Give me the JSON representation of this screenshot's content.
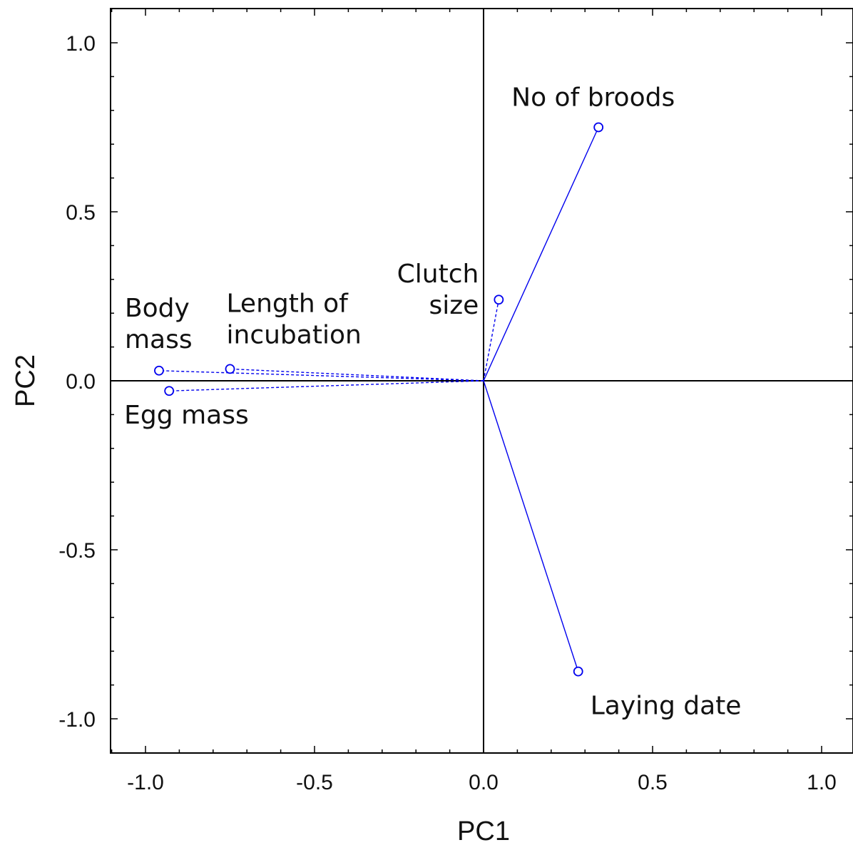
{
  "chart_data": {
    "type": "scatter",
    "subtype": "pca-loadings-biplot",
    "title": "",
    "xlabel": "PC1",
    "ylabel": "PC2",
    "xlim": [
      -1.1,
      1.1
    ],
    "ylim": [
      -1.1,
      1.1
    ],
    "xticks": [
      -1.0,
      -0.5,
      0.0,
      0.5,
      1.0
    ],
    "yticks": [
      -1.0,
      -0.5,
      0.0,
      0.5,
      1.0
    ],
    "xtick_labels": [
      "-1.0",
      "-0.5",
      "0.0",
      "0.5",
      "1.0"
    ],
    "ytick_labels": [
      "-1.0",
      "-0.5",
      "0.0",
      "0.5",
      "1.0"
    ],
    "grid": false,
    "color": "#0000ee",
    "variables": [
      {
        "name": "No of broods",
        "label_lines": [
          "No of broods"
        ],
        "x": 0.34,
        "y": 0.75,
        "line": "solid"
      },
      {
        "name": "Laying date",
        "label_lines": [
          "Laying date"
        ],
        "x": 0.28,
        "y": -0.86,
        "line": "solid"
      },
      {
        "name": "Clutch size",
        "label_lines": [
          "Clutch",
          "size"
        ],
        "x": 0.045,
        "y": 0.24,
        "line": "dashed"
      },
      {
        "name": "Body mass",
        "label_lines": [
          "Body",
          "mass"
        ],
        "x": -0.96,
        "y": 0.03,
        "line": "dashed"
      },
      {
        "name": "Length of incubation",
        "label_lines": [
          "Length of",
          "incubation"
        ],
        "x": -0.75,
        "y": 0.035,
        "line": "dashed"
      },
      {
        "name": "Egg mass",
        "label_lines": [
          "Egg mass"
        ],
        "x": -0.93,
        "y": -0.03,
        "line": "dashed"
      }
    ]
  }
}
